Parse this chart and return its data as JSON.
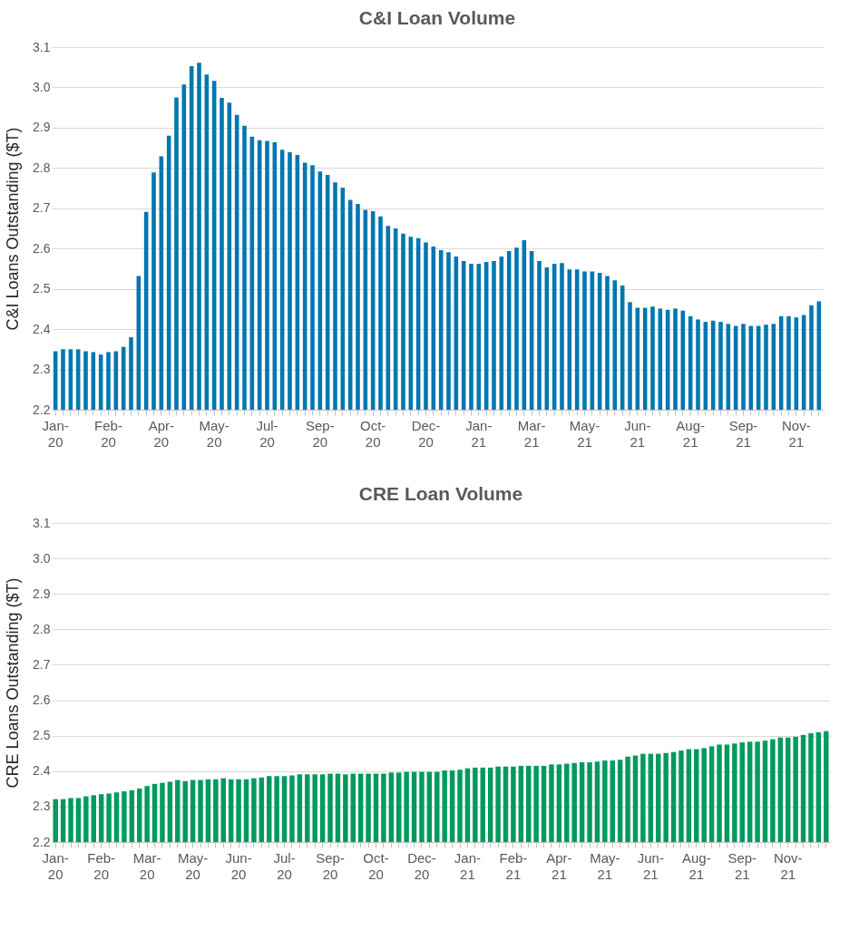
{
  "chart_data": [
    {
      "type": "bar",
      "title": "C&I Loan Volume",
      "ylabel": "C&I Loans Outstanding ($T)",
      "color": "#0077b0",
      "grid": "y",
      "ylim": [
        2.2,
        3.1
      ],
      "yticks": [
        2.2,
        2.3,
        2.4,
        2.5,
        2.6,
        2.7,
        2.8,
        2.9,
        {
          "value": 3.0,
          "label": "3.0"
        },
        3.1
      ],
      "categories": [
        "Jan-20",
        null,
        null,
        null,
        null,
        null,
        null,
        "Feb-20",
        null,
        null,
        null,
        null,
        null,
        null,
        "Apr-20",
        null,
        null,
        null,
        null,
        null,
        null,
        "May-20",
        null,
        null,
        null,
        null,
        null,
        null,
        "Jul-20",
        null,
        null,
        null,
        null,
        null,
        null,
        "Sep-20",
        null,
        null,
        null,
        null,
        null,
        null,
        "Oct-20",
        null,
        null,
        null,
        null,
        null,
        null,
        "Dec-20",
        null,
        null,
        null,
        null,
        null,
        null,
        "Jan-21",
        null,
        null,
        null,
        null,
        null,
        null,
        "Mar-21",
        null,
        null,
        null,
        null,
        null,
        null,
        "May-21",
        null,
        null,
        null,
        null,
        null,
        null,
        "Jun-21",
        null,
        null,
        null,
        null,
        null,
        null,
        "Aug-21",
        null,
        null,
        null,
        null,
        null,
        null,
        "Sep-21",
        null,
        null,
        null,
        null,
        null,
        null,
        "Nov-21",
        null,
        null,
        null
      ],
      "values": [
        2.345,
        2.35,
        2.35,
        2.35,
        2.345,
        2.343,
        2.337,
        2.343,
        2.345,
        2.356,
        2.38,
        2.532,
        2.691,
        2.789,
        2.829,
        2.88,
        2.975,
        3.007,
        3.053,
        3.061,
        3.032,
        3.016,
        2.974,
        2.962,
        2.932,
        2.905,
        2.878,
        2.869,
        2.867,
        2.864,
        2.845,
        2.839,
        2.832,
        2.813,
        2.807,
        2.791,
        2.783,
        2.764,
        2.751,
        2.721,
        2.711,
        2.696,
        2.693,
        2.68,
        2.656,
        2.65,
        2.637,
        2.629,
        2.626,
        2.615,
        2.605,
        2.596,
        2.591,
        2.58,
        2.569,
        2.562,
        2.562,
        2.567,
        2.569,
        2.58,
        2.594,
        2.602,
        2.621,
        2.594,
        2.569,
        2.553,
        2.562,
        2.564,
        2.548,
        2.548,
        2.543,
        2.543,
        2.54,
        2.532,
        2.521,
        2.508,
        2.467,
        2.453,
        2.453,
        2.456,
        2.451,
        2.448,
        2.451,
        2.446,
        2.432,
        2.424,
        2.418,
        2.421,
        2.418,
        2.413,
        2.408,
        2.413,
        2.408,
        2.408,
        2.411,
        2.413,
        2.432,
        2.432,
        2.429,
        2.435,
        2.459,
        2.469
      ]
    },
    {
      "type": "bar",
      "title": "CRE Loan Volume",
      "ylabel": "CRE Loans Outstanding ($T)",
      "color": "#009a5f",
      "grid": "y",
      "ylim": [
        2.2,
        3.1
      ],
      "yticks": [
        2.2,
        2.3,
        2.4,
        2.5,
        2.6,
        2.7,
        2.8,
        2.9,
        {
          "value": 3.0,
          "label": "3.0"
        },
        3.1
      ],
      "categories": [
        "Jan-20",
        null,
        null,
        null,
        null,
        null,
        "Feb-20",
        null,
        null,
        null,
        null,
        null,
        "Mar-20",
        null,
        null,
        null,
        null,
        null,
        "May-20",
        null,
        null,
        null,
        null,
        null,
        "Jun-20",
        null,
        null,
        null,
        null,
        null,
        "Jul-20",
        null,
        null,
        null,
        null,
        null,
        "Sep-20",
        null,
        null,
        null,
        null,
        null,
        "Oct-20",
        null,
        null,
        null,
        null,
        null,
        "Dec-20",
        null,
        null,
        null,
        null,
        null,
        "Jan-21",
        null,
        null,
        null,
        null,
        null,
        "Feb-21",
        null,
        null,
        null,
        null,
        null,
        "Apr-21",
        null,
        null,
        null,
        null,
        null,
        "May-21",
        null,
        null,
        null,
        null,
        null,
        "Jun-21",
        null,
        null,
        null,
        null,
        null,
        "Aug-21",
        null,
        null,
        null,
        null,
        null,
        "Sep-21",
        null,
        null,
        null,
        null,
        null,
        "Nov-21",
        null,
        null,
        null,
        null,
        null
      ],
      "values": [
        2.321,
        2.321,
        2.324,
        2.324,
        2.329,
        2.332,
        2.335,
        2.337,
        2.34,
        2.343,
        2.346,
        2.351,
        2.358,
        2.364,
        2.367,
        2.37,
        2.375,
        2.372,
        2.375,
        2.375,
        2.377,
        2.377,
        2.38,
        2.377,
        2.377,
        2.377,
        2.38,
        2.382,
        2.386,
        2.386,
        2.386,
        2.388,
        2.391,
        2.391,
        2.391,
        2.391,
        2.393,
        2.393,
        2.391,
        2.393,
        2.393,
        2.393,
        2.393,
        2.393,
        2.396,
        2.396,
        2.398,
        2.398,
        2.398,
        2.398,
        2.398,
        2.402,
        2.402,
        2.404,
        2.408,
        2.41,
        2.41,
        2.41,
        2.413,
        2.413,
        2.413,
        2.415,
        2.415,
        2.415,
        2.415,
        2.419,
        2.419,
        2.421,
        2.423,
        2.425,
        2.425,
        2.427,
        2.43,
        2.43,
        2.432,
        2.441,
        2.444,
        2.449,
        2.449,
        2.449,
        2.451,
        2.454,
        2.458,
        2.462,
        2.462,
        2.465,
        2.47,
        2.475,
        2.475,
        2.478,
        2.481,
        2.483,
        2.483,
        2.486,
        2.49,
        2.495,
        2.495,
        2.497,
        2.502,
        2.507,
        2.51,
        2.513
      ]
    }
  ]
}
